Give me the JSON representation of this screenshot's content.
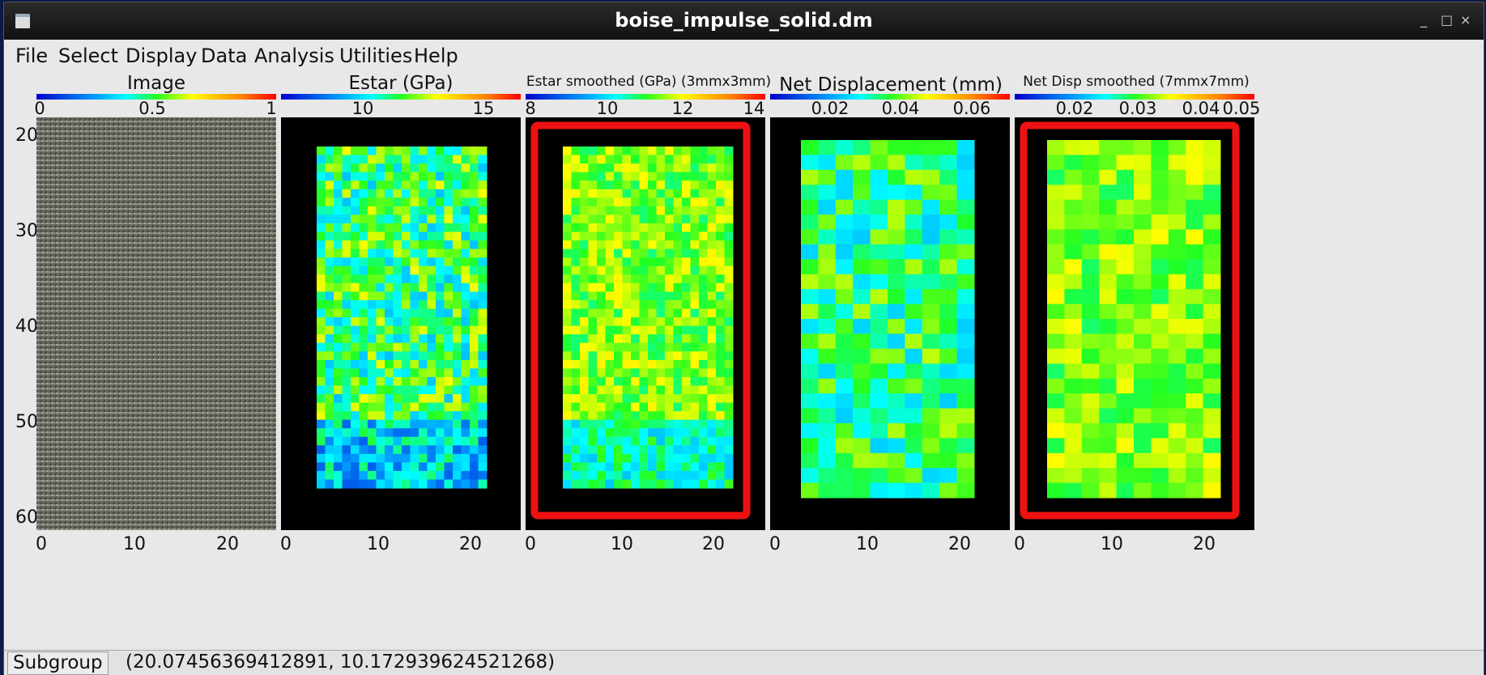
{
  "window": {
    "title": "boise_impulse_solid.dm"
  },
  "menu": [
    "File",
    "Select",
    "Display",
    "Data",
    "Analysis",
    "Utilities",
    "Help"
  ],
  "panels": [
    {
      "title": "Image",
      "cbar_ticks": [
        "0",
        "0.5",
        "1"
      ],
      "colormap": "jet",
      "highlighted": false,
      "content": "photo"
    },
    {
      "title": "Estar (GPa)",
      "cbar_ticks": [
        "10",
        "15"
      ],
      "colormap": "jet",
      "highlighted": false,
      "content": "heatmap"
    },
    {
      "title": "Estar smoothed (GPa) (3mmx3mm)",
      "cbar_ticks": [
        "8",
        "10",
        "12",
        "14"
      ],
      "colormap": "jet",
      "highlighted": true,
      "content": "heatmap"
    },
    {
      "title": "Net Displacement (mm)",
      "cbar_ticks": [
        "0.02",
        "0.04",
        "0.06"
      ],
      "colormap": "jet",
      "highlighted": false,
      "content": "heatmap"
    },
    {
      "title": "Net Disp smoothed (7mmx7mm)",
      "cbar_ticks": [
        "0.02",
        "0.03",
        "0.04",
        "0.05"
      ],
      "colormap": "jet",
      "highlighted": true,
      "content": "heatmap"
    }
  ],
  "y_ticks": [
    "20",
    "30",
    "40",
    "50",
    "60"
  ],
  "x_ticks": [
    "0",
    "10",
    "20"
  ],
  "highlight_color": "#ee1111",
  "status": {
    "label": "Subgroup",
    "value": "(20.07456369412891, 10.172939624521268)"
  }
}
